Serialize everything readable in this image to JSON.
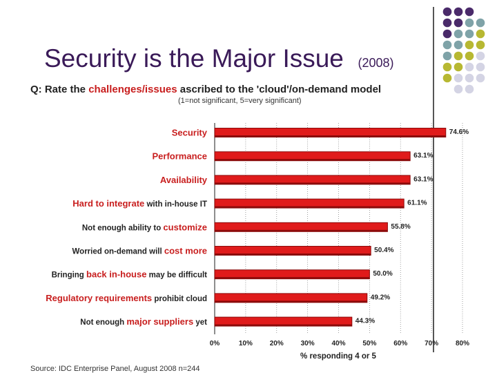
{
  "slide": {
    "title": "Security is the Major Issue",
    "year": "(2008)"
  },
  "question": {
    "prefix": "Q:  Rate the ",
    "highlight": "challenges/issues",
    "suffix": " ascribed to the 'cloud'/on-demand model",
    "scale_note": "(1=not significant, 5=very significant)"
  },
  "source": "Source: IDC Enterprise Panel, August 2008  n=244",
  "colors": {
    "bar": "#e01b1b",
    "bar_dark": "#8b0a0a",
    "highlight_text": "#c81e1e",
    "dot_purple": "#4a2a6a",
    "dot_teal": "#7fa3a8",
    "dot_olive": "#b7b832",
    "dot_lavender": "#d4d4e4"
  },
  "chart_data": {
    "type": "bar",
    "orientation": "horizontal",
    "title": "Rate the challenges/issues ascribed to the 'cloud'/on-demand model",
    "xlabel": "% responding 4 or 5",
    "ylabel": "",
    "xlim": [
      0,
      80
    ],
    "x_ticks": [
      "0%",
      "10%",
      "20%",
      "30%",
      "40%",
      "50%",
      "60%",
      "70%",
      "80%"
    ],
    "grid": true,
    "categories": [
      {
        "parts": [
          {
            "t": "Security",
            "hl": true
          }
        ],
        "value": 74.6,
        "label": "74.6%"
      },
      {
        "parts": [
          {
            "t": "Performance",
            "hl": true
          }
        ],
        "value": 63.1,
        "label": "63.1%"
      },
      {
        "parts": [
          {
            "t": "Availability",
            "hl": true
          }
        ],
        "value": 63.1,
        "label": "63.1%"
      },
      {
        "parts": [
          {
            "t": "Hard to integrate",
            "hl": true
          },
          {
            "t": " with in-house IT",
            "hl": false
          }
        ],
        "value": 61.1,
        "label": "61.1%"
      },
      {
        "parts": [
          {
            "t": "Not enough ability to ",
            "hl": false
          },
          {
            "t": "customize",
            "hl": true
          }
        ],
        "value": 55.8,
        "label": "55.8%"
      },
      {
        "parts": [
          {
            "t": "Worried on-demand will ",
            "hl": false
          },
          {
            "t": "cost more",
            "hl": true
          }
        ],
        "value": 50.4,
        "label": "50.4%"
      },
      {
        "parts": [
          {
            "t": "Bringing ",
            "hl": false
          },
          {
            "t": "back in-house",
            "hl": true
          },
          {
            "t": " may be difficult",
            "hl": false
          }
        ],
        "value": 50.0,
        "label": "50.0%"
      },
      {
        "parts": [
          {
            "t": "Regulatory requirements",
            "hl": true
          },
          {
            "t": " prohibit cloud",
            "hl": false
          }
        ],
        "value": 49.2,
        "label": "49.2%"
      },
      {
        "parts": [
          {
            "t": "Not enough ",
            "hl": false
          },
          {
            "t": "major suppliers",
            "hl": true
          },
          {
            "t": " yet",
            "hl": false
          }
        ],
        "value": 44.3,
        "label": "44.3%"
      }
    ]
  }
}
